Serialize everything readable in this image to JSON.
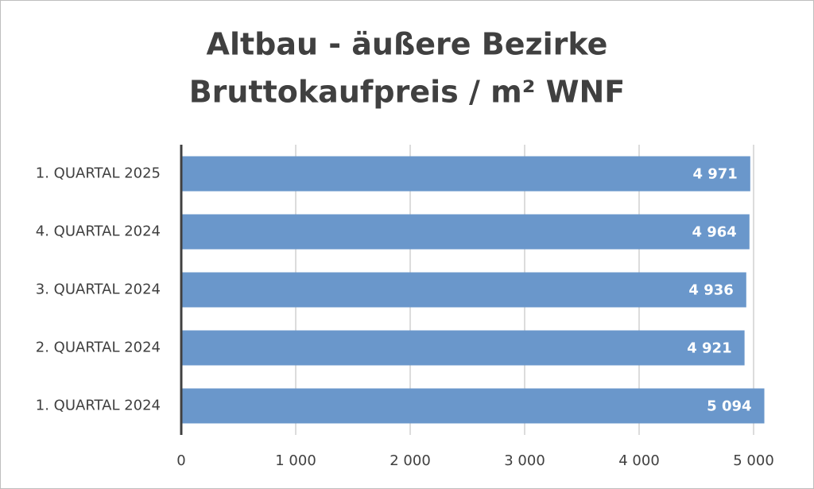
{
  "chart_data": {
    "type": "barh",
    "title": "Altbau - äußere Bezirke",
    "subtitle": "Bruttokaufpreis / m² WNF",
    "categories": [
      "1. QUARTAL 2025",
      "4. QUARTAL 2024",
      "3. QUARTAL 2024",
      "2. QUARTAL 2024",
      "1. QUARTAL 2024"
    ],
    "values": [
      4971,
      4964,
      4936,
      4921,
      5094
    ],
    "value_labels": [
      "4 971",
      "4 964",
      "4 936",
      "4 921",
      "5 094"
    ],
    "color": "#6a97cb",
    "xlim": [
      0,
      5000
    ],
    "xticks": [
      0,
      {
        "value": 1000,
        "label": "1 000"
      },
      {
        "value": 2000,
        "label": "2 000"
      },
      {
        "value": 3000,
        "label": "3 000"
      },
      {
        "value": 4000,
        "label": "4 000"
      },
      {
        "value": 5000,
        "label": "5 000"
      }
    ],
    "grid": true
  }
}
